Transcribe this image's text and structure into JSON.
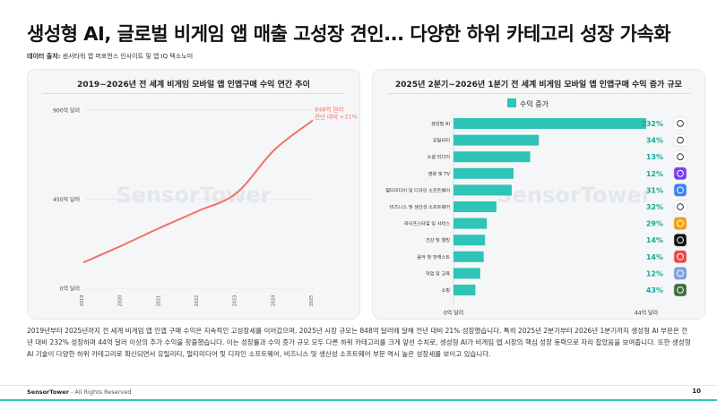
{
  "title": "생성형 AI, 글로벌 비게임 앱 매출 고성장 견인... 다양한 하위 카테고리 성장 가속화",
  "source": {
    "label": "데이터 출처:",
    "text": "센서타워 앱 퍼포먼스 인사이트 및 앱 IQ 텍소노미"
  },
  "watermark": "SensorTower",
  "description": "2019년부터 2025년까지 전 세계 비게임 앱 인앱 구매 수익은 지속적인 고성장세를 이어갔으며, 2025년 시장 규모는 848억 달러에 달해 전년 대비 21% 성장했습니다. 특히 2025년 2분기부터 2026년 1분기까지 생성형 AI 부문은 전년 대비 232% 성장하며 44억 달러 이상의 추가 수익을 창출했습니다. 이는 성장률과 수익 증가 규모 모두 다른 하위 카테고리를 크게 앞선 수치로, 생성형 AI가 비게임 앱 시장의 핵심 성장 동력으로 자리 잡았음을 보여줍니다. 또한 생성형 AI 기술이 다양한 하위 카테고리로 확산되면서 유틸리티, 멀티미디어 및 디자인 소프트웨어, 비즈니스 및 생산성 소프트웨어 부문 역시 높은 성장세를 보이고 있습니다.",
  "footer": {
    "brand": "SensorTower",
    "text": " - All Rights Reserved",
    "page": "10"
  },
  "colors": {
    "line": "#f4706a",
    "bar": "#2ec4b6",
    "pct": "#16a99c",
    "accent": "#2ec4b6"
  },
  "chart_data": [
    {
      "type": "line",
      "title": "2019~2026년 전 세계 비게임 모바일 앱 인앱구매 수익 연간 추이",
      "x": [
        "2019",
        "2020",
        "2021",
        "2022",
        "2023",
        "2024",
        "2025"
      ],
      "values": [
        130,
        215,
        305,
        390,
        480,
        700,
        848
      ],
      "yticks": [
        {
          "value": 900,
          "label": "900억 달러"
        },
        {
          "value": 450,
          "label": "450억 달러"
        },
        {
          "value": 0,
          "label": "0억 달러"
        }
      ],
      "ylim": [
        0,
        900
      ],
      "annotation": {
        "line1": "848억 달러",
        "line2": "전년 대비 +21%"
      }
    },
    {
      "type": "bar",
      "orientation": "horizontal",
      "title": "2025년 2분기~2026년 1분기 전 세계 비게임 모바일 앱 인앱구매 수익 증가 규모",
      "legend": "수익 증가",
      "categories": [
        "생성형 AI",
        "유틸리티",
        "소셜 미디어",
        "영화 및 TV",
        "멀티미디어 및 디자인 소프트웨어",
        "비즈니스 및 생산성 소프트웨어",
        "라이프스타일 및 서비스",
        "건강 및 웰빙",
        "음악 및 팟캐스트",
        "작업 및 교육",
        "쇼핑"
      ],
      "values": [
        44,
        19.5,
        17.5,
        13.7,
        13.3,
        9.8,
        7.6,
        7.2,
        6.9,
        6.1,
        5.0
      ],
      "pct_labels": [
        "232%",
        "34%",
        "13%",
        "12%",
        "31%",
        "32%",
        "29%",
        "14%",
        "14%",
        "12%",
        "43%"
      ],
      "icons": [
        "chatgpt-icon",
        "messenger-icon",
        "tiktok-icon",
        "video-app-icon",
        "canva-icon",
        "notion-icon",
        "wallet-icon",
        "health-icon",
        "music-icon",
        "education-icon",
        "shopping-icon"
      ],
      "icon_colors": [
        "#ffffff",
        "#ffffff",
        "#ffffff",
        "#7b3ff2",
        "#3b82f6",
        "#ffffff",
        "#f59e0b",
        "#111111",
        "#ef4444",
        "#7da0d8",
        "#3f6b3a"
      ],
      "xticks": [
        {
          "value": 0,
          "label": "0억 달러"
        },
        {
          "value": 44,
          "label": "44억 달러"
        }
      ],
      "xlim": [
        0,
        44
      ]
    }
  ]
}
